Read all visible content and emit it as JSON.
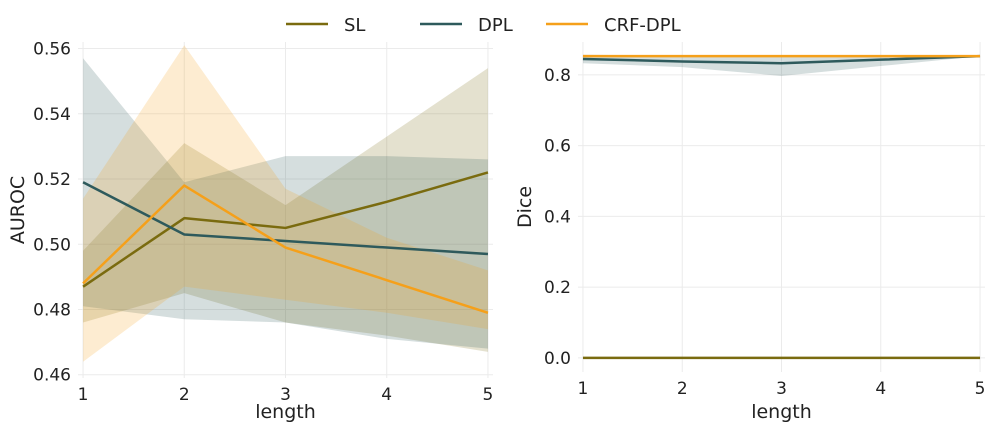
{
  "legend": {
    "placement": "top-center",
    "items": [
      {
        "label": "SL",
        "color": "#7a6b0f"
      },
      {
        "label": "DPL",
        "color": "#2e5a5c"
      },
      {
        "label": "CRF-DPL",
        "color": "#f5a01a"
      }
    ]
  },
  "chart_data": [
    {
      "type": "line",
      "xlabel": "length",
      "ylabel": "AUROC",
      "x": [
        1,
        2,
        3,
        4,
        5
      ],
      "xticks": [
        1,
        2,
        3,
        4,
        5
      ],
      "xlim": [
        0.95,
        5.05
      ],
      "ylim": [
        0.459,
        0.562
      ],
      "yticks": [
        0.46,
        0.48,
        0.5,
        0.52,
        0.54,
        0.56
      ],
      "ytick_labels": [
        "0.46",
        "0.48",
        "0.50",
        "0.52",
        "0.54",
        "0.56"
      ],
      "grid": true,
      "series": [
        {
          "name": "SL",
          "color": "#7a6b0f",
          "values": [
            0.487,
            0.508,
            0.505,
            0.513,
            0.522
          ],
          "lower": [
            0.476,
            0.485,
            0.476,
            0.472,
            0.467
          ],
          "upper": [
            0.498,
            0.531,
            0.512,
            0.533,
            0.554
          ]
        },
        {
          "name": "DPL",
          "color": "#2e5a5c",
          "values": [
            0.519,
            0.503,
            0.501,
            0.499,
            0.497
          ],
          "lower": [
            0.481,
            0.477,
            0.476,
            0.471,
            0.468
          ],
          "upper": [
            0.557,
            0.519,
            0.527,
            0.527,
            0.526
          ]
        },
        {
          "name": "CRF-DPL",
          "color": "#f5a01a",
          "values": [
            0.488,
            0.518,
            0.499,
            0.489,
            0.479
          ],
          "lower": [
            0.464,
            0.487,
            0.483,
            0.479,
            0.474
          ],
          "upper": [
            0.514,
            0.561,
            0.517,
            0.502,
            0.492
          ]
        }
      ]
    },
    {
      "type": "line",
      "xlabel": "length",
      "ylabel": "Dice",
      "x": [
        1,
        2,
        3,
        4,
        5
      ],
      "xticks": [
        1,
        2,
        3,
        4,
        5
      ],
      "xlim": [
        0.95,
        5.05
      ],
      "ylim": [
        -0.04,
        0.893
      ],
      "yticks": [
        0.0,
        0.2,
        0.4,
        0.6,
        0.8
      ],
      "ytick_labels": [
        "0.0",
        "0.2",
        "0.4",
        "0.6",
        "0.8"
      ],
      "grid": true,
      "series": [
        {
          "name": "SL",
          "color": "#7a6b0f",
          "values": [
            0.0,
            0.0,
            0.0,
            0.0,
            0.0
          ],
          "lower": [
            0.0,
            0.0,
            0.0,
            0.0,
            0.0
          ],
          "upper": [
            0.0,
            0.0,
            0.0,
            0.0,
            0.0
          ]
        },
        {
          "name": "DPL",
          "color": "#2e5a5c",
          "values": [
            0.845,
            0.838,
            0.833,
            0.843,
            0.853
          ],
          "lower": [
            0.833,
            0.822,
            0.797,
            0.825,
            0.853
          ],
          "upper": [
            0.857,
            0.854,
            0.853,
            0.853,
            0.853
          ]
        },
        {
          "name": "CRF-DPL",
          "color": "#f5a01a",
          "values": [
            0.853,
            0.853,
            0.853,
            0.853,
            0.853
          ],
          "lower": [
            0.853,
            0.853,
            0.853,
            0.853,
            0.853
          ],
          "upper": [
            0.853,
            0.853,
            0.853,
            0.853,
            0.853
          ]
        }
      ]
    }
  ]
}
